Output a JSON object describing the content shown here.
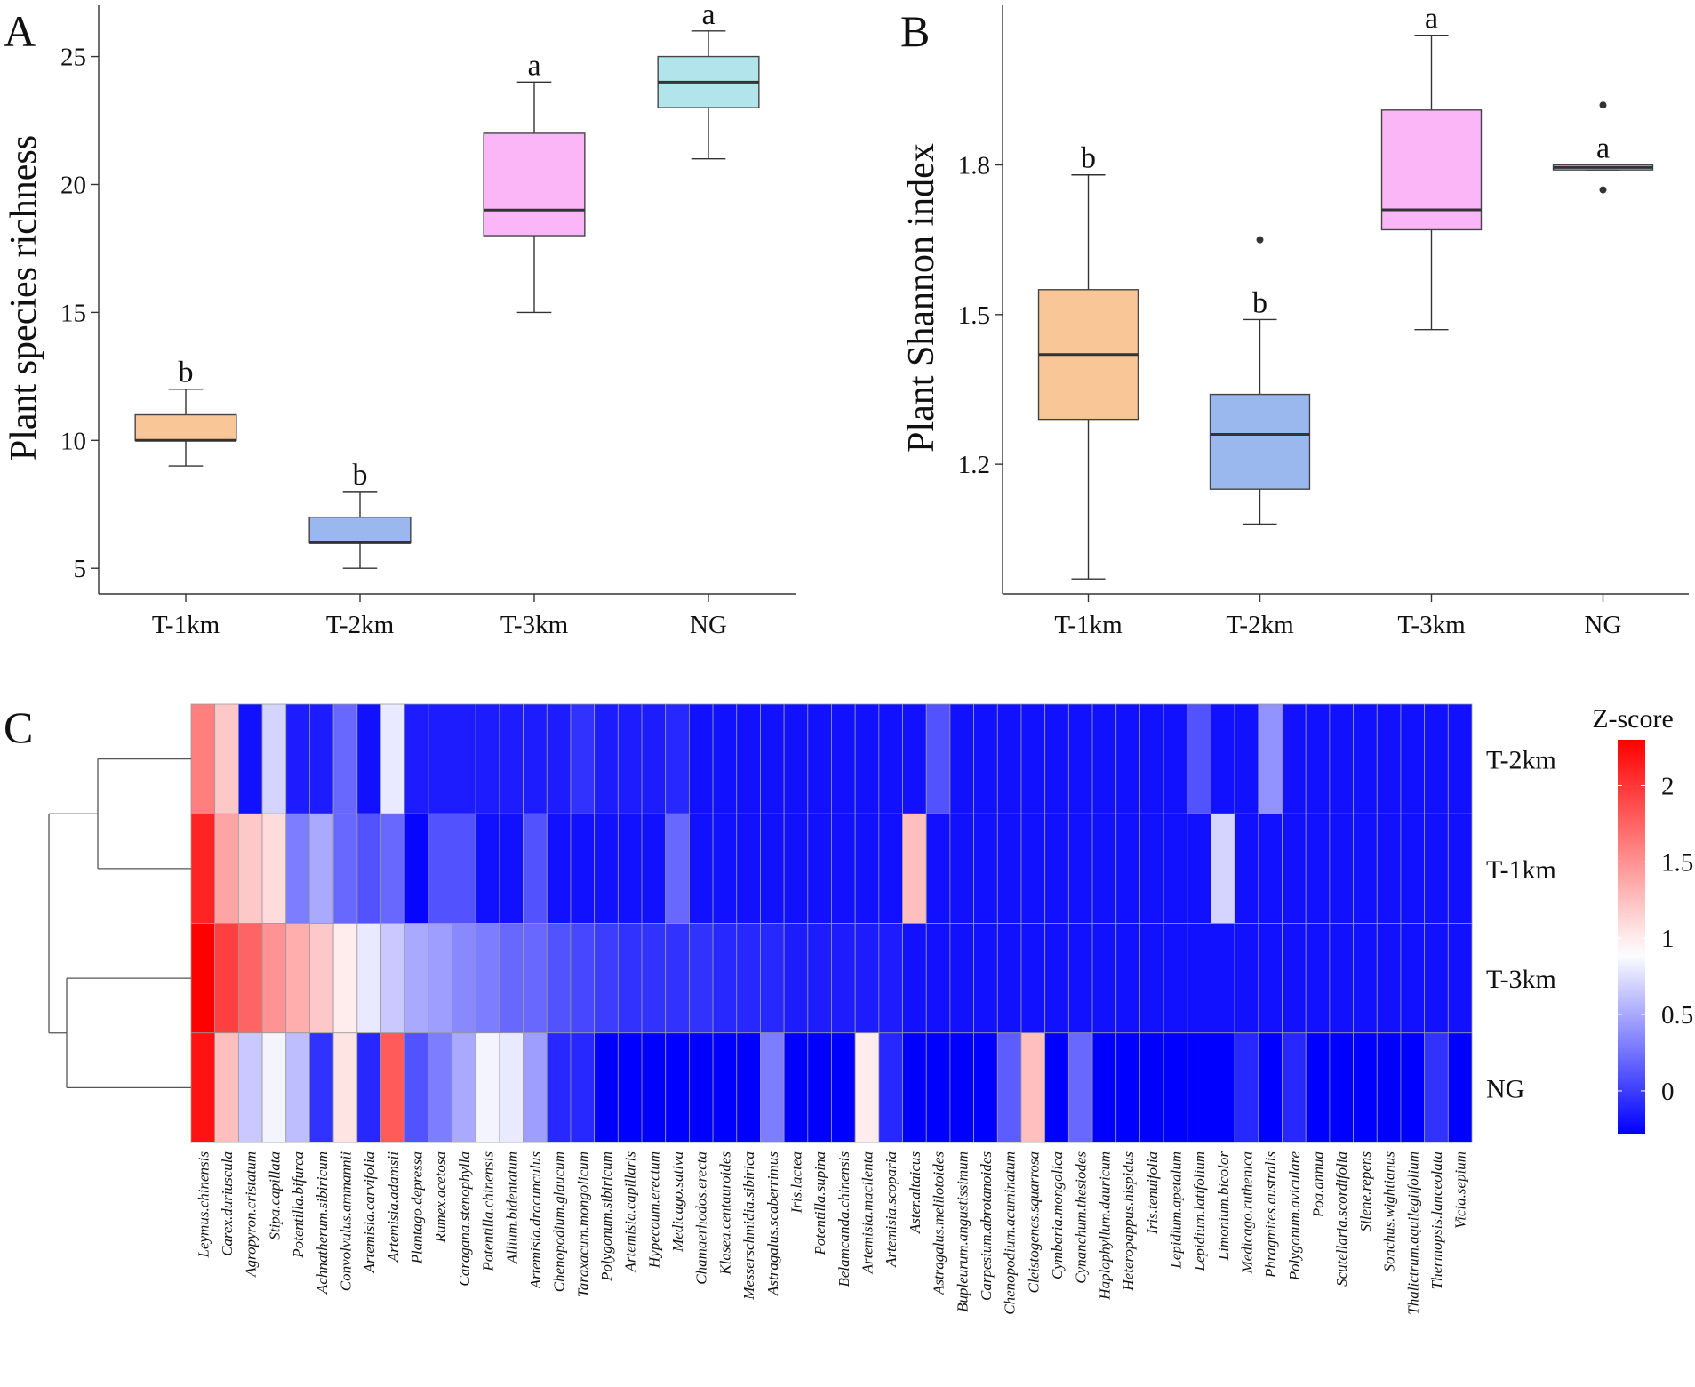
{
  "chart_data": [
    {
      "panel": "A",
      "type": "boxplot",
      "ylabel": "Plant species richness",
      "ylim": [
        4,
        27
      ],
      "yticks": [
        5,
        10,
        15,
        20,
        25
      ],
      "categories": [
        "T-1km",
        "T-2km",
        "T-3km",
        "NG"
      ],
      "colors": [
        "#F8C697",
        "#9AB7EE",
        "#FBB6F7",
        "#B2E4EB"
      ],
      "boxes": [
        {
          "whisker_low": 9,
          "q1": 10,
          "median": 10,
          "q3": 11,
          "whisker_high": 12,
          "outliers": [],
          "letter": "b"
        },
        {
          "whisker_low": 5,
          "q1": 6,
          "median": 6,
          "q3": 7,
          "whisker_high": 8,
          "outliers": [],
          "letter": "b"
        },
        {
          "whisker_low": 15,
          "q1": 18,
          "median": 19,
          "q3": 22,
          "whisker_high": 24,
          "outliers": [],
          "letter": "a"
        },
        {
          "whisker_low": 21,
          "q1": 23,
          "median": 24,
          "q3": 25,
          "whisker_high": 26,
          "outliers": [],
          "letter": "a"
        }
      ]
    },
    {
      "panel": "B",
      "type": "boxplot",
      "ylabel": "Plant Shannon index",
      "ylim": [
        0.94,
        2.12
      ],
      "yticks": [
        1.2,
        1.5,
        1.8
      ],
      "yticklabels": [
        "1.2",
        "1.5",
        "1.8"
      ],
      "categories": [
        "T-1km",
        "T-2km",
        "T-3km",
        "NG"
      ],
      "colors": [
        "#F8C697",
        "#9AB7EE",
        "#FBB6F7",
        "#B2E4EB"
      ],
      "boxes": [
        {
          "whisker_low": 0.97,
          "q1": 1.29,
          "median": 1.42,
          "q3": 1.55,
          "whisker_high": 1.78,
          "outliers": [],
          "letter": "b"
        },
        {
          "whisker_low": 1.08,
          "q1": 1.15,
          "median": 1.26,
          "q3": 1.34,
          "whisker_high": 1.49,
          "outliers": [
            1.65
          ],
          "letter": "b"
        },
        {
          "whisker_low": 1.47,
          "q1": 1.67,
          "median": 1.71,
          "q3": 1.91,
          "whisker_high": 2.06,
          "outliers": [],
          "letter": "a"
        },
        {
          "whisker_low": 1.79,
          "q1": 1.79,
          "median": 1.795,
          "q3": 1.8,
          "whisker_high": 1.8,
          "outliers": [
            1.92,
            1.75
          ],
          "letter": "a"
        }
      ]
    },
    {
      "panel": "C",
      "type": "heatmap",
      "rows": [
        "T-2km",
        "T-1km",
        "T-3km",
        "NG"
      ],
      "colorbar_title": "Z-score",
      "colorbar_ticks": [
        0,
        0.5,
        1,
        1.5,
        2
      ],
      "colorbar_ticklabels": [
        "0",
        "0.5",
        "1",
        "1.5",
        "2"
      ],
      "zlim": [
        -0.28,
        2.3
      ],
      "colormap": [
        "#0000FF",
        "#FFFFFF",
        "#FF0000"
      ],
      "colormap_mid": 0.9,
      "columns": [
        "Leymus.chinensis",
        "Carex.duriuscula",
        "Agropyron.cristatum",
        "Stipa.capillata",
        "Potentilla.bifurca",
        "Achnatherum.sibiricum",
        "Convolvulus.ammannii",
        "Artemisia.carvifolia",
        "Artemisia.adamsii",
        "Plantago.depressa",
        "Rumex.acetosa",
        "Caragana.stenophylla",
        "Potentilla.chinensis",
        "Allium.bidentatum",
        "Artemisia.dracunculus",
        "Chenopodium.glaucum",
        "Taraxacum.mongolicum",
        "Polygonum.sibiricum",
        "Artemisia.capillaris",
        "Hypecoum.erectum",
        "Medicago.sativa",
        "Chamaerhodos.erecta",
        "Klasea.centauroides",
        "Messerschmidia.sibirica",
        "Astragalus.scaberrimus",
        "Iris.lactea",
        "Potentilla.supina",
        "Belamcanda.chinensis",
        "Artemisia.macilenta",
        "Artemisia.scoparia",
        "Aster.altaicus",
        "Astragalus.melilotoides",
        "Bupleurum.angustissimum",
        "Carpesium.abrotanoides",
        "Chenopodium.acuminatum",
        "Cleistogenes.squarrosa",
        "Cymbaria.mongolica",
        "Cynanchum.thesiodes",
        "Haplophyllum.dauricum",
        "Heteropappus.hispidus",
        "Iris.tenuifolia",
        "Lepidium.apetalum",
        "Lepidium.latifolium",
        "Limonium.bicolor",
        "Medicago.ruthenica",
        "Phragmites.australis",
        "Polygonum.aviculare",
        "Poa.annua",
        "Scutellaria.scordifolia",
        "Silene.repens",
        "Sonchus.wightianus",
        "Thalictrum.aquilegiifolium",
        "Thermopsis.lanceolata",
        "Vicia.sepium"
      ],
      "values": [
        [
          1.6,
          1.2,
          -0.2,
          0.7,
          -0.15,
          -0.15,
          0.2,
          -0.2,
          0.8,
          -0.15,
          -0.15,
          -0.15,
          -0.15,
          -0.15,
          -0.15,
          -0.15,
          -0.05,
          -0.15,
          -0.15,
          -0.15,
          -0.1,
          -0.2,
          -0.2,
          -0.2,
          -0.2,
          -0.2,
          -0.2,
          -0.2,
          -0.2,
          -0.2,
          -0.2,
          0.1,
          -0.2,
          -0.2,
          -0.2,
          -0.2,
          -0.2,
          -0.2,
          -0.2,
          -0.2,
          -0.2,
          -0.2,
          0.1,
          -0.2,
          -0.2,
          0.4,
          -0.2,
          -0.2,
          -0.2,
          -0.2,
          -0.2,
          -0.2,
          -0.2,
          -0.2
        ],
        [
          2.1,
          1.4,
          1.2,
          1.1,
          0.3,
          0.5,
          0.2,
          0.1,
          0.2,
          -0.25,
          0.1,
          0.1,
          -0.2,
          -0.2,
          0.1,
          -0.2,
          -0.2,
          -0.2,
          -0.2,
          -0.2,
          0.2,
          -0.2,
          -0.2,
          -0.2,
          -0.2,
          -0.2,
          -0.2,
          -0.2,
          -0.2,
          -0.2,
          1.25,
          -0.2,
          -0.2,
          -0.2,
          -0.2,
          -0.2,
          -0.2,
          -0.2,
          -0.2,
          -0.2,
          -0.2,
          -0.2,
          -0.2,
          0.7,
          -0.2,
          -0.2,
          -0.2,
          -0.2,
          -0.2,
          -0.2,
          -0.2,
          -0.2,
          -0.2,
          -0.2
        ],
        [
          2.3,
          1.95,
          1.75,
          1.5,
          1.35,
          1.2,
          1.0,
          0.8,
          0.65,
          0.5,
          0.45,
          0.35,
          0.3,
          0.2,
          0.2,
          0.1,
          0.05,
          0.0,
          -0.05,
          -0.05,
          -0.05,
          -0.05,
          -0.1,
          -0.1,
          -0.1,
          -0.15,
          -0.15,
          -0.15,
          -0.15,
          -0.15,
          -0.2,
          -0.2,
          -0.2,
          -0.2,
          -0.2,
          -0.2,
          -0.2,
          -0.2,
          -0.2,
          -0.2,
          -0.2,
          -0.2,
          -0.2,
          -0.2,
          -0.2,
          -0.2,
          -0.2,
          -0.2,
          -0.2,
          -0.2,
          -0.2,
          -0.2,
          -0.2,
          -0.2
        ],
        [
          2.2,
          1.25,
          0.65,
          0.85,
          0.6,
          -0.05,
          1.05,
          -0.1,
          1.8,
          0.1,
          0.3,
          0.5,
          0.85,
          0.8,
          0.45,
          -0.1,
          -0.1,
          -0.28,
          -0.28,
          -0.28,
          -0.28,
          -0.28,
          -0.28,
          -0.28,
          0.3,
          -0.28,
          -0.28,
          -0.28,
          1.0,
          -0.1,
          -0.28,
          -0.28,
          -0.28,
          -0.28,
          0.15,
          1.25,
          -0.28,
          0.2,
          -0.28,
          -0.28,
          -0.28,
          -0.28,
          -0.28,
          -0.28,
          -0.1,
          -0.28,
          -0.1,
          -0.28,
          -0.28,
          -0.28,
          -0.28,
          -0.28,
          -0.05,
          -0.28
        ]
      ],
      "dendrogram": "((T-2km,T-1km),(T-3km,NG))"
    }
  ],
  "panel_labels": {
    "a": "A",
    "b": "B",
    "c": "C"
  }
}
